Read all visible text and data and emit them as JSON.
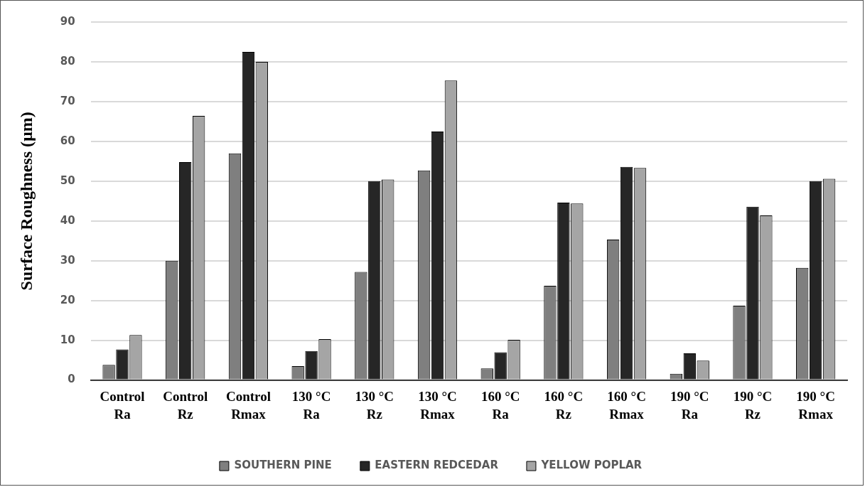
{
  "chart_data": {
    "type": "bar",
    "ylabel": "Surface Roughness (µm)",
    "categories": [
      "Control Ra",
      "Control Rz",
      "Control Rmax",
      "130 °C Ra",
      "130 °C Rz",
      "130 °C Rmax",
      "160 °C Ra",
      "160 °C Rz",
      "160 °C Rmax",
      "190 °C Ra",
      "190 °C Rz",
      "190 °C Rmax"
    ],
    "series": [
      {
        "name": "SOUTHERN PINE",
        "color": "#7f7f7f",
        "values": [
          3.8,
          30,
          57,
          3.5,
          27.2,
          52.7,
          2.9,
          23.7,
          35.3,
          1.6,
          18.7,
          28.2
        ]
      },
      {
        "name": "EASTERN REDCEDAR",
        "color": "#262626",
        "values": [
          7.7,
          54.8,
          82.5,
          7.3,
          50,
          62.5,
          7,
          44.6,
          53.6,
          6.7,
          43.6,
          50
        ]
      },
      {
        "name": "YELLOW POPLAR",
        "color": "#a5a5a5",
        "values": [
          11.3,
          66.4,
          80,
          10.3,
          50.4,
          75.3,
          10.1,
          44.4,
          53.3,
          4.9,
          41.4,
          50.6
        ]
      }
    ],
    "ylim": [
      0,
      90
    ],
    "yticks": [
      0,
      10,
      20,
      30,
      40,
      50,
      60,
      70,
      80,
      90
    ],
    "grid": "y",
    "legend": "bottom"
  }
}
